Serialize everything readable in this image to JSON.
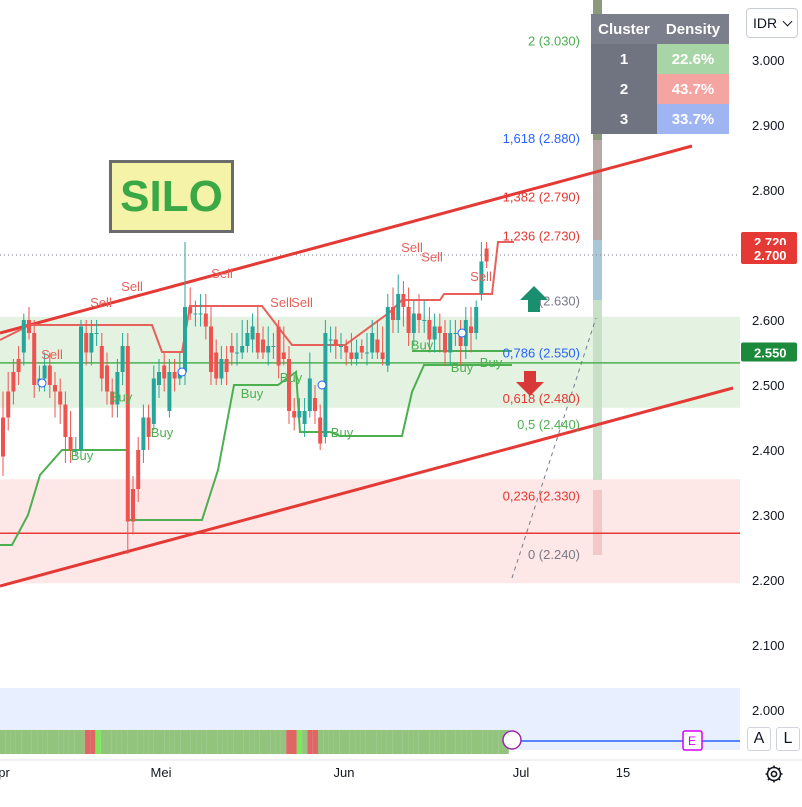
{
  "instrument": {
    "ticker": "SILO",
    "currency": "IDR"
  },
  "chart_data": {
    "type": "candlestick",
    "y_axis": {
      "ylim": [
        1.94,
        3.085
      ],
      "ticks": [
        "3.000",
        "2.900",
        "2.800",
        "2.700",
        "2.600",
        "2.500",
        "2.400",
        "2.300",
        "2.200",
        "2.100",
        "2.000"
      ]
    },
    "x_axis": {
      "labels": [
        "pr",
        "Mei",
        "Jun",
        "Jul",
        "15"
      ]
    },
    "price_labels": [
      {
        "text": "2.720",
        "value": 2.72,
        "color": "#e53935"
      },
      {
        "text": "2.700",
        "value": 2.7,
        "color": "#e53935"
      },
      {
        "text": "2.550",
        "value": 2.55,
        "color": "#1b8a3a"
      }
    ],
    "fibonacci": [
      {
        "label": "2 (3.030)",
        "value": 3.03,
        "color": "#4caf50"
      },
      {
        "label": "1,618 (2.880)",
        "value": 2.88,
        "color": "#2962ff"
      },
      {
        "label": "1,382 (2.790)",
        "value": 2.79,
        "color": "#e53935"
      },
      {
        "label": "1,236 (2.730)",
        "value": 2.73,
        "color": "#e53935"
      },
      {
        "label": "1 (2.630)",
        "value": 2.63,
        "color": "#787b86"
      },
      {
        "label": "0,786 (2.550)",
        "value": 2.55,
        "color": "#2962ff"
      },
      {
        "label": "0,618 (2.480)",
        "value": 2.48,
        "color": "#e53935"
      },
      {
        "label": "0,5 (2.440)",
        "value": 2.44,
        "color": "#4caf50"
      },
      {
        "label": "0,236 (2.330)",
        "value": 2.33,
        "color": "#e53935"
      },
      {
        "label": "0 (2.240)",
        "value": 2.24,
        "color": "#787b86"
      }
    ],
    "clusters": {
      "headers": [
        "Cluster",
        "Density"
      ],
      "rows": [
        {
          "id": "1",
          "density": "22.6%",
          "color": "#a8d5a6"
        },
        {
          "id": "2",
          "density": "43.7%",
          "color": "#f4a5a2"
        },
        {
          "id": "3",
          "density": "33.7%",
          "color": "#9fb5f2"
        }
      ]
    },
    "zones": [
      {
        "name": "support",
        "from": 2.465,
        "to": 2.605,
        "color": "#e3f2e1"
      },
      {
        "name": "demand",
        "from": 2.195,
        "to": 2.355,
        "color": "#fde7e7"
      }
    ],
    "horizontal_lines": [
      {
        "value": 2.534,
        "color": "#4caf50"
      },
      {
        "value": 2.272,
        "color": "#e53935"
      },
      {
        "value": 2.7,
        "color": "#787b86",
        "dotted": true
      }
    ],
    "signals": {
      "sell": [
        {
          "x": 52,
          "value": 2.54
        },
        {
          "x": 101,
          "value": 2.62
        },
        {
          "x": 132,
          "value": 2.645
        },
        {
          "x": 222,
          "value": 2.665
        },
        {
          "x": 281,
          "value": 2.62
        },
        {
          "x": 302,
          "value": 2.62
        },
        {
          "x": 412,
          "value": 2.705
        },
        {
          "x": 432,
          "value": 2.69
        },
        {
          "x": 481,
          "value": 2.66
        }
      ],
      "buy": [
        {
          "x": 82,
          "value": 2.385
        },
        {
          "x": 121,
          "value": 2.475
        },
        {
          "x": 162,
          "value": 2.42
        },
        {
          "x": 252,
          "value": 2.48
        },
        {
          "x": 291,
          "value": 2.505
        },
        {
          "x": 342,
          "value": 2.42
        },
        {
          "x": 422,
          "value": 2.555
        },
        {
          "x": 462,
          "value": 2.52
        },
        {
          "x": 491,
          "value": 2.528
        }
      ],
      "sell_label": "Sell",
      "buy_label": "Buy"
    },
    "candles": [
      [
        2.45,
        2.39,
        2.49,
        2.36
      ],
      [
        2.49,
        2.45,
        2.52,
        2.43
      ],
      [
        2.52,
        2.49,
        2.54,
        2.47
      ],
      [
        2.54,
        2.52,
        2.56,
        2.5
      ],
      [
        2.55,
        2.6,
        2.61,
        2.53
      ],
      [
        2.6,
        2.58,
        2.62,
        2.57
      ],
      [
        2.58,
        2.5,
        2.6,
        2.48
      ],
      [
        2.5,
        2.51,
        2.53,
        2.49
      ],
      [
        2.51,
        2.53,
        2.55,
        2.49
      ],
      [
        2.53,
        2.5,
        2.55,
        2.48
      ],
      [
        2.5,
        2.49,
        2.52,
        2.45
      ],
      [
        2.49,
        2.47,
        2.51,
        2.44
      ],
      [
        2.47,
        2.42,
        2.49,
        2.38
      ],
      [
        2.42,
        2.4,
        2.46,
        2.38
      ],
      [
        2.4,
        2.4,
        2.42,
        2.39
      ],
      [
        2.4,
        2.59,
        2.6,
        2.39
      ],
      [
        2.58,
        2.55,
        2.6,
        2.53
      ],
      [
        2.55,
        2.58,
        2.6,
        2.53
      ],
      [
        2.58,
        2.58,
        2.6,
        2.56
      ],
      [
        2.56,
        2.51,
        2.58,
        2.49
      ],
      [
        2.53,
        2.49,
        2.55,
        2.47
      ],
      [
        2.49,
        2.47,
        2.51,
        2.45
      ],
      [
        2.47,
        2.52,
        2.54,
        2.45
      ],
      [
        2.52,
        2.56,
        2.58,
        2.5
      ],
      [
        2.56,
        2.29,
        2.58,
        2.24
      ],
      [
        2.34,
        2.29,
        2.36,
        2.27
      ],
      [
        2.4,
        2.34,
        2.42,
        2.32
      ],
      [
        2.4,
        2.45,
        2.47,
        2.38
      ],
      [
        2.45,
        2.42,
        2.47,
        2.4
      ],
      [
        2.44,
        2.51,
        2.53,
        2.43
      ],
      [
        2.5,
        2.52,
        2.54,
        2.48
      ],
      [
        2.53,
        2.51,
        2.55,
        2.49
      ],
      [
        2.46,
        2.52,
        2.54,
        2.45
      ],
      [
        2.52,
        2.51,
        2.54,
        2.49
      ],
      [
        2.51,
        2.52,
        2.55,
        2.5
      ],
      [
        2.52,
        2.62,
        2.72,
        2.5
      ],
      [
        2.62,
        2.61,
        2.65,
        2.6
      ],
      [
        2.61,
        2.61,
        2.63,
        2.59
      ],
      [
        2.61,
        2.61,
        2.64,
        2.59
      ],
      [
        2.61,
        2.59,
        2.64,
        2.57
      ],
      [
        2.59,
        2.52,
        2.62,
        2.5
      ],
      [
        2.55,
        2.51,
        2.57,
        2.5
      ],
      [
        2.51,
        2.54,
        2.56,
        2.5
      ],
      [
        2.54,
        2.52,
        2.56,
        2.5
      ],
      [
        2.56,
        2.55,
        2.58,
        2.53
      ],
      [
        2.55,
        2.55,
        2.58,
        2.53
      ],
      [
        2.55,
        2.56,
        2.6,
        2.54
      ],
      [
        2.56,
        2.58,
        2.6,
        2.55
      ],
      [
        2.57,
        2.59,
        2.61,
        2.55
      ],
      [
        2.58,
        2.55,
        2.62,
        2.54
      ],
      [
        2.57,
        2.55,
        2.59,
        2.54
      ],
      [
        2.55,
        2.56,
        2.59,
        2.53
      ],
      [
        2.56,
        2.56,
        2.58,
        2.54
      ],
      [
        2.59,
        2.53,
        2.6,
        2.51
      ],
      [
        2.55,
        2.54,
        2.59,
        2.53
      ],
      [
        2.54,
        2.46,
        2.56,
        2.44
      ],
      [
        2.46,
        2.45,
        2.48,
        2.43
      ],
      [
        2.45,
        2.46,
        2.48,
        2.44
      ],
      [
        2.44,
        2.46,
        2.48,
        2.42
      ],
      [
        2.46,
        2.51,
        2.55,
        2.45
      ],
      [
        2.48,
        2.46,
        2.5,
        2.44
      ],
      [
        2.45,
        2.41,
        2.47,
        2.4
      ],
      [
        2.42,
        2.58,
        2.6,
        2.41
      ],
      [
        2.57,
        2.57,
        2.59,
        2.55
      ],
      [
        2.57,
        2.56,
        2.59,
        2.54
      ],
      [
        2.56,
        2.56,
        2.58,
        2.54
      ],
      [
        2.56,
        2.55,
        2.57,
        2.53
      ],
      [
        2.55,
        2.54,
        2.58,
        2.53
      ],
      [
        2.54,
        2.55,
        2.57,
        2.53
      ],
      [
        2.56,
        2.55,
        2.57,
        2.54
      ],
      [
        2.55,
        2.55,
        2.58,
        2.53
      ],
      [
        2.55,
        2.58,
        2.6,
        2.54
      ],
      [
        2.57,
        2.55,
        2.6,
        2.54
      ],
      [
        2.55,
        2.54,
        2.59,
        2.53
      ],
      [
        2.53,
        2.62,
        2.64,
        2.52
      ],
      [
        2.62,
        2.6,
        2.65,
        2.58
      ],
      [
        2.6,
        2.64,
        2.67,
        2.58
      ],
      [
        2.64,
        2.62,
        2.66,
        2.59
      ],
      [
        2.62,
        2.58,
        2.65,
        2.56
      ],
      [
        2.58,
        2.61,
        2.63,
        2.56
      ],
      [
        2.61,
        2.6,
        2.64,
        2.58
      ],
      [
        2.6,
        2.6,
        2.63,
        2.58
      ],
      [
        2.6,
        2.57,
        2.62,
        2.55
      ],
      [
        2.57,
        2.59,
        2.61,
        2.55
      ],
      [
        2.59,
        2.58,
        2.61,
        2.55
      ],
      [
        2.58,
        2.55,
        2.6,
        2.53
      ],
      [
        2.55,
        2.58,
        2.6,
        2.53
      ],
      [
        2.58,
        2.58,
        2.6,
        2.56
      ],
      [
        2.58,
        2.56,
        2.6,
        2.53
      ],
      [
        2.56,
        2.6,
        2.62,
        2.54
      ],
      [
        2.59,
        2.58,
        2.62,
        2.55
      ],
      [
        2.58,
        2.62,
        2.63,
        2.57
      ],
      [
        2.64,
        2.69,
        2.72,
        2.63
      ],
      [
        2.71,
        2.69,
        2.72,
        2.68
      ]
    ],
    "timeline_strip": {
      "colors": [
        "g",
        "g",
        "g",
        "g",
        "g",
        "g",
        "g",
        "g",
        "g",
        "g",
        "g",
        "g",
        "g",
        "g",
        "g",
        "g",
        "r",
        "r",
        "b",
        "g",
        "g",
        "g",
        "g",
        "g",
        "g",
        "g",
        "g",
        "g",
        "g",
        "g",
        "g",
        "g",
        "g",
        "g",
        "g",
        "g",
        "g",
        "g",
        "g",
        "g",
        "g",
        "g",
        "g",
        "g",
        "g",
        "g",
        "g",
        "g",
        "g",
        "g",
        "g",
        "g",
        "g",
        "g",
        "r",
        "r",
        "b",
        "g",
        "r",
        "r",
        "g",
        "g",
        "g",
        "g",
        "g",
        "g",
        "g",
        "g",
        "g",
        "g",
        "g",
        "g",
        "g",
        "g",
        "g",
        "g",
        "g",
        "g",
        "g",
        "g",
        "g",
        "g",
        "g",
        "g",
        "g",
        "g",
        "g",
        "g",
        "g",
        "g",
        "g",
        "g",
        "g",
        "g",
        "g",
        "g"
      ]
    },
    "markers": {
      "earnings": "E"
    },
    "toggles": {
      "auto": "A",
      "log": "L"
    }
  }
}
